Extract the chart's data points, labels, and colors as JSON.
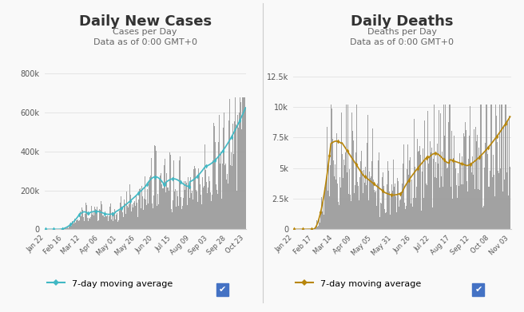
{
  "left_title": "Daily New Cases",
  "left_subtitle1": "Cases per Day",
  "left_subtitle2": "Data as of 0:00 GMT+0",
  "left_ylabel_ticks": [
    0,
    200000,
    400000,
    600000,
    800000
  ],
  "left_ylabel_labels": [
    "0",
    "200k",
    "400k",
    "600k",
    "800k"
  ],
  "left_ylim": [
    0,
    850000
  ],
  "left_xtick_labels": [
    "Jan 22",
    "Feb 16",
    "Mar 12",
    "Apr 06",
    "May 01",
    "May 26",
    "Jun 20",
    "Jul 15",
    "Aug 09",
    "Sep 03",
    "Sep 28",
    "Oct 23"
  ],
  "left_legend": "7-day moving average",
  "left_line_color": "#41b8c4",
  "left_fill_color": "#999999",
  "right_title": "Daily Deaths",
  "right_subtitle1": "Deaths per Day",
  "right_subtitle2": "Data as of 0:00 GMT+0",
  "right_ylabel_ticks": [
    0,
    2500,
    5000,
    7500,
    10000,
    12500
  ],
  "right_ylabel_labels": [
    "0",
    "2.5k",
    "5k",
    "7.5k",
    "10k",
    "12.5k"
  ],
  "right_ylim": [
    0,
    13500
  ],
  "right_xtick_labels": [
    "Jan 22",
    "Feb 17",
    "Mar 14",
    "Apr 09",
    "May 05",
    "May 31",
    "Jun 26",
    "Jul 22",
    "Aug 17",
    "Sep 12",
    "Oct 08",
    "Nov 03"
  ],
  "right_legend": "7-day moving average",
  "right_line_color": "#b8860b",
  "right_fill_color": "#999999",
  "bg_color": "#f9f9f9",
  "grid_color": "#e0e0e0",
  "checkbox_color": "#4472c4",
  "title_fontsize": 13,
  "subtitle_fontsize": 8,
  "tick_fontsize": 7,
  "legend_fontsize": 8
}
